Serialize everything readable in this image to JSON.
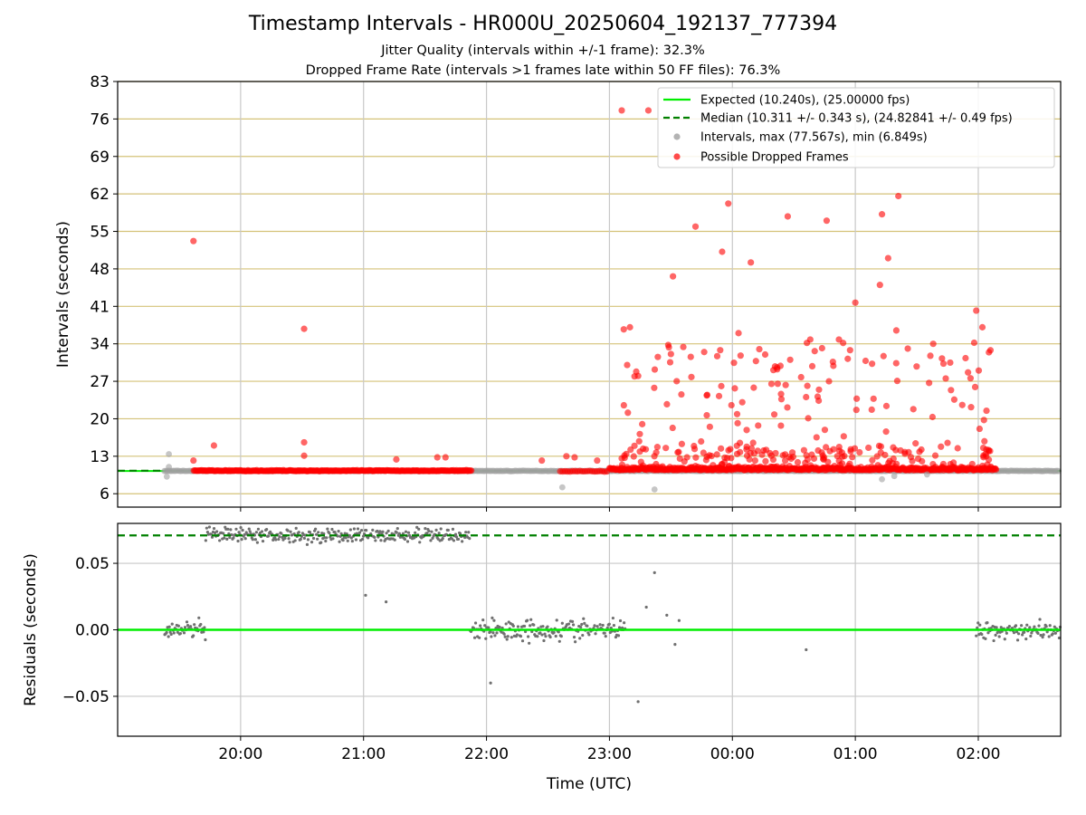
{
  "title": "Timestamp Intervals - HR000U_20250604_192137_777394",
  "subtitle_lines": [
    "Jitter Quality (intervals within +/-1 frame): 32.3%",
    "Dropped Frame Rate (intervals >1 frames late within 50 FF files): 76.3%"
  ],
  "colors": {
    "expected": "#00ee00",
    "median": "#008000",
    "intervals": "#a0a0a0",
    "dropped": "#ff0000",
    "residuals": "#707070",
    "hgrid_top": "#d4c278",
    "vgrid": "#c8c8c8"
  },
  "chart_data": [
    {
      "type": "scatter",
      "name": "intervals",
      "ylabel": "Intervals (seconds)",
      "ylim": [
        3.5,
        83
      ],
      "yticks": [
        6,
        13,
        20,
        27,
        34,
        41,
        48,
        55,
        62,
        69,
        76,
        83
      ],
      "ytick_labels": [
        "6",
        "13",
        "20",
        "27",
        "34",
        "41",
        "48",
        "55",
        "62",
        "69",
        "76",
        "83"
      ],
      "xlim_hours": [
        19.0,
        26.67
      ],
      "xticks": [
        "20:00",
        "21:00",
        "22:00",
        "23:00",
        "00:00",
        "01:00",
        "02:00"
      ],
      "grid": true,
      "legend_position": "top-right",
      "legend": [
        {
          "label": "Expected (10.240s), (25.00000 fps)",
          "style": "line"
        },
        {
          "label": "Median (10.311 +/- 0.343 s), (24.82841 +/- 0.49 fps)",
          "style": "dashed"
        },
        {
          "label": "Intervals, max (77.567s), min (6.849s)",
          "style": "gray-dot"
        },
        {
          "label": "Possible Dropped Frames",
          "style": "red-dot"
        }
      ],
      "expected_value": 10.24,
      "median_value": 10.311,
      "dropped_points": [
        {
          "time": "19:37",
          "y": 53.2
        },
        {
          "time": "19:37",
          "y": 12.2
        },
        {
          "time": "19:47",
          "y": 15.0
        },
        {
          "time": "20:31",
          "y": 36.8
        },
        {
          "time": "20:31",
          "y": 15.6
        },
        {
          "time": "20:31",
          "y": 13.1
        },
        {
          "time": "21:16",
          "y": 12.4
        },
        {
          "time": "21:36",
          "y": 12.8
        },
        {
          "time": "21:40",
          "y": 12.8
        },
        {
          "time": "22:27",
          "y": 12.2
        },
        {
          "time": "22:39",
          "y": 13.0
        },
        {
          "time": "22:43",
          "y": 12.8
        },
        {
          "time": "22:54",
          "y": 12.2
        },
        {
          "time": "23:06",
          "y": 77.6
        },
        {
          "time": "23:19",
          "y": 77.6
        },
        {
          "time": "23:07",
          "y": 36.7
        },
        {
          "time": "23:10",
          "y": 37.1
        },
        {
          "time": "23:31",
          "y": 46.6
        },
        {
          "time": "23:42",
          "y": 55.9
        },
        {
          "time": "23:55",
          "y": 51.2
        },
        {
          "time": "23:58",
          "y": 60.2
        },
        {
          "time": "00:09",
          "y": 49.2
        },
        {
          "time": "00:27",
          "y": 57.8
        },
        {
          "time": "00:46",
          "y": 57.0
        },
        {
          "time": "01:13",
          "y": 58.2
        },
        {
          "time": "01:21",
          "y": 61.6
        },
        {
          "time": "01:16",
          "y": 50.0
        },
        {
          "time": "01:12",
          "y": 45.0
        },
        {
          "time": "01:00",
          "y": 41.7
        },
        {
          "time": "01:59",
          "y": 40.2
        },
        {
          "time": "02:02",
          "y": 37.1
        },
        {
          "time": "01:20",
          "y": 36.5
        },
        {
          "time": "00:03",
          "y": 36.0
        },
        {
          "time": "00:26",
          "y": 26.3
        },
        {
          "time": "00:38",
          "y": 34.8
        },
        {
          "time": "00:52",
          "y": 34.8
        },
        {
          "time": "01:43",
          "y": 30.3
        },
        {
          "time": "01:38",
          "y": 34.0
        },
        {
          "time": "00:04",
          "y": 31.8
        },
        {
          "time": "23:30",
          "y": 32.1
        },
        {
          "time": "23:40",
          "y": 27.8
        },
        {
          "time": "23:14",
          "y": 28.0
        },
        {
          "time": "00:16",
          "y": 32.0
        },
        {
          "time": "01:36",
          "y": 26.7
        },
        {
          "time": "02:04",
          "y": 21.5
        },
        {
          "time": "23:16",
          "y": 19.0
        },
        {
          "time": "23:49",
          "y": 18.5
        },
        {
          "time": "00:37",
          "y": 20.1
        },
        {
          "time": "01:08",
          "y": 21.7
        },
        {
          "time": "01:15",
          "y": 17.6
        },
        {
          "time": "01:45",
          "y": 15.5
        },
        {
          "time": "02:03",
          "y": 15.8
        }
      ],
      "gray_points": [
        {
          "time": "19:25",
          "y": 13.4
        },
        {
          "time": "19:25",
          "y": 11.0
        },
        {
          "time": "19:24",
          "y": 9.2
        },
        {
          "time": "22:37",
          "y": 7.2
        },
        {
          "time": "23:22",
          "y": 6.8
        },
        {
          "time": "01:13",
          "y": 8.7
        },
        {
          "time": "01:19",
          "y": 9.3
        },
        {
          "time": "01:35",
          "y": 9.6
        }
      ]
    },
    {
      "type": "scatter",
      "name": "residuals",
      "xlabel": "Time (UTC)",
      "ylabel": "Residuals (seconds)",
      "ylim": [
        -0.08,
        0.08
      ],
      "yticks": [
        -0.05,
        0.0,
        0.05
      ],
      "ytick_labels": [
        "−0.05",
        "0.00",
        "0.05"
      ],
      "xticks": [
        "20:00",
        "21:00",
        "22:00",
        "23:00",
        "00:00",
        "01:00",
        "02:00"
      ],
      "expected_residual": 0.0,
      "median_residual": 0.071,
      "clusters": [
        {
          "start": "19:23",
          "end": "19:43",
          "center": 0.0,
          "spread": 0.012
        },
        {
          "start": "19:43",
          "end": "21:52",
          "center": 0.071,
          "spread": 0.008
        },
        {
          "start": "21:52",
          "end": "23:08",
          "center": 0.0,
          "spread": 0.012
        },
        {
          "start": "01:59",
          "end": "02:40",
          "center": 0.0,
          "spread": 0.01
        }
      ],
      "outliers": [
        {
          "time": "23:14",
          "y": -0.054
        },
        {
          "time": "23:18",
          "y": 0.017
        },
        {
          "time": "23:22",
          "y": 0.043
        },
        {
          "time": "23:28",
          "y": 0.011
        },
        {
          "time": "23:32",
          "y": -0.011
        },
        {
          "time": "23:34",
          "y": 0.007
        },
        {
          "time": "00:36",
          "y": -0.015
        },
        {
          "time": "21:01",
          "y": 0.026
        },
        {
          "time": "21:11",
          "y": 0.021
        },
        {
          "time": "22:02",
          "y": -0.04
        }
      ]
    }
  ]
}
